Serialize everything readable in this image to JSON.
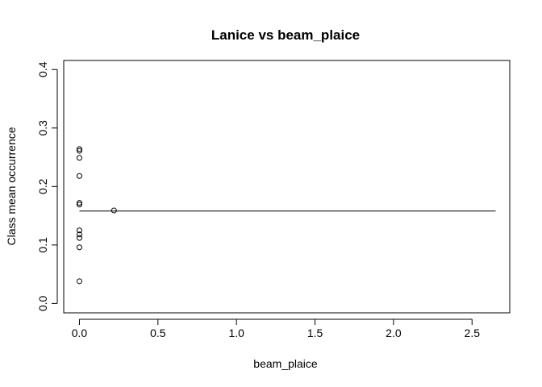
{
  "chart_data": {
    "type": "scatter",
    "title": "Lanice vs beam_plaice",
    "xlabel": "beam_plaice",
    "ylabel": "Class mean occurrence",
    "xlim": [
      -0.1,
      2.74
    ],
    "ylim": [
      -0.016,
      0.4155
    ],
    "x_ticks": [
      0.0,
      0.5,
      1.0,
      1.5,
      2.0,
      2.5
    ],
    "x_tick_labels": [
      "0.0",
      "0.5",
      "1.0",
      "1.5",
      "2.0",
      "2.5"
    ],
    "y_ticks": [
      0.0,
      0.1,
      0.2,
      0.3,
      0.4
    ],
    "y_tick_labels": [
      "0.0",
      "0.1",
      "0.2",
      "0.3",
      "0.4"
    ],
    "grid": false,
    "legend": "none",
    "points": [
      {
        "x": 0.0,
        "y": 0.264
      },
      {
        "x": 0.0,
        "y": 0.261
      },
      {
        "x": 0.0,
        "y": 0.249
      },
      {
        "x": 0.0,
        "y": 0.218
      },
      {
        "x": 0.0,
        "y": 0.172
      },
      {
        "x": 0.0,
        "y": 0.169
      },
      {
        "x": 0.22,
        "y": 0.159
      },
      {
        "x": 0.0,
        "y": 0.125
      },
      {
        "x": 0.0,
        "y": 0.118
      },
      {
        "x": 0.0,
        "y": 0.112
      },
      {
        "x": 0.0,
        "y": 0.096
      },
      {
        "x": 0.0,
        "y": 0.038
      }
    ],
    "reference_line": {
      "y": 0.158,
      "x_from": 0.0,
      "x_to": 2.65
    },
    "colors": {
      "background": "#ffffff",
      "ink": "#000000"
    }
  }
}
